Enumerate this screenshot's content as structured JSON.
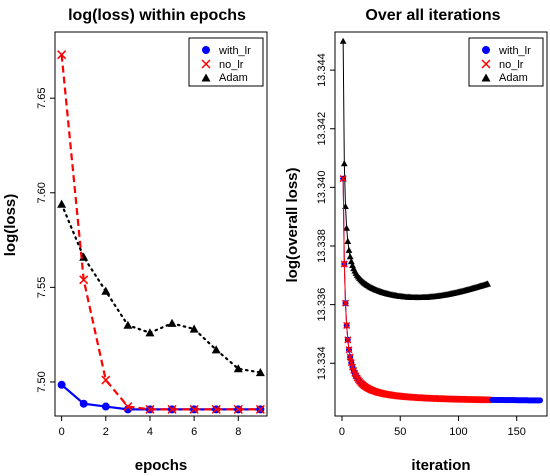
{
  "colors": {
    "with_lr": "#0000ff",
    "no_lr": "#ff0000",
    "Adam": "#000000"
  },
  "chart_data": [
    {
      "type": "line",
      "title": "log(loss) within epochs",
      "xlabel": "epochs",
      "ylabel": "log(loss)",
      "xlim": [
        -0.3,
        9.3
      ],
      "ylim": [
        7.482,
        7.685
      ],
      "xticks": [
        0,
        2,
        4,
        6,
        8
      ],
      "yticks": [
        7.5,
        7.55,
        7.6,
        7.65
      ],
      "ytick_labels": [
        "7.50",
        "7.55",
        "7.60",
        "7.65"
      ],
      "legend_position": "top-right",
      "x": [
        0,
        1,
        2,
        3,
        4,
        5,
        6,
        7,
        8,
        9
      ],
      "series": [
        {
          "name": "with_lr",
          "marker": "circle",
          "line": "solid",
          "values": [
            7.4985,
            7.4885,
            7.487,
            7.4855,
            7.4855,
            7.4855,
            7.4855,
            7.4855,
            7.4855,
            7.4855
          ]
        },
        {
          "name": "no_lr",
          "marker": "x",
          "line": "dashed",
          "values": [
            7.673,
            7.554,
            7.501,
            7.487,
            7.4855,
            7.4855,
            7.4855,
            7.4855,
            7.4855,
            7.4855
          ]
        },
        {
          "name": "Adam",
          "marker": "triangle",
          "line": "dotted",
          "values": [
            7.594,
            7.566,
            7.548,
            7.53,
            7.526,
            7.531,
            7.528,
            7.517,
            7.507,
            7.505
          ]
        }
      ]
    },
    {
      "type": "line",
      "title": "Over all iterations",
      "xlabel": "iteration",
      "ylabel": "log(overall loss)",
      "xlim": [
        -6,
        176
      ],
      "ylim": [
        13.3322,
        13.3453
      ],
      "xticks": [
        0,
        50,
        100,
        150
      ],
      "yticks": [
        13.334,
        13.336,
        13.338,
        13.34,
        13.342,
        13.344
      ],
      "ytick_labels": [
        "13.334",
        "13.336",
        "13.338",
        "13.340",
        "13.342",
        "13.344"
      ],
      "legend_position": "top-right",
      "series": [
        {
          "name": "with_lr",
          "marker": "circle",
          "line": "solid",
          "n": 170,
          "start": 13.3403,
          "floor": 13.33268,
          "decay": 5.5
        },
        {
          "name": "no_lr",
          "marker": "x",
          "line": "solid",
          "n": 125,
          "start": 13.3403,
          "floor": 13.33268,
          "decay": 5.2
        },
        {
          "name": "Adam",
          "marker": "triangle",
          "line": "solid",
          "n": 125,
          "start": 13.345,
          "floor": 13.3365,
          "decay": 3.5
        }
      ]
    }
  ]
}
